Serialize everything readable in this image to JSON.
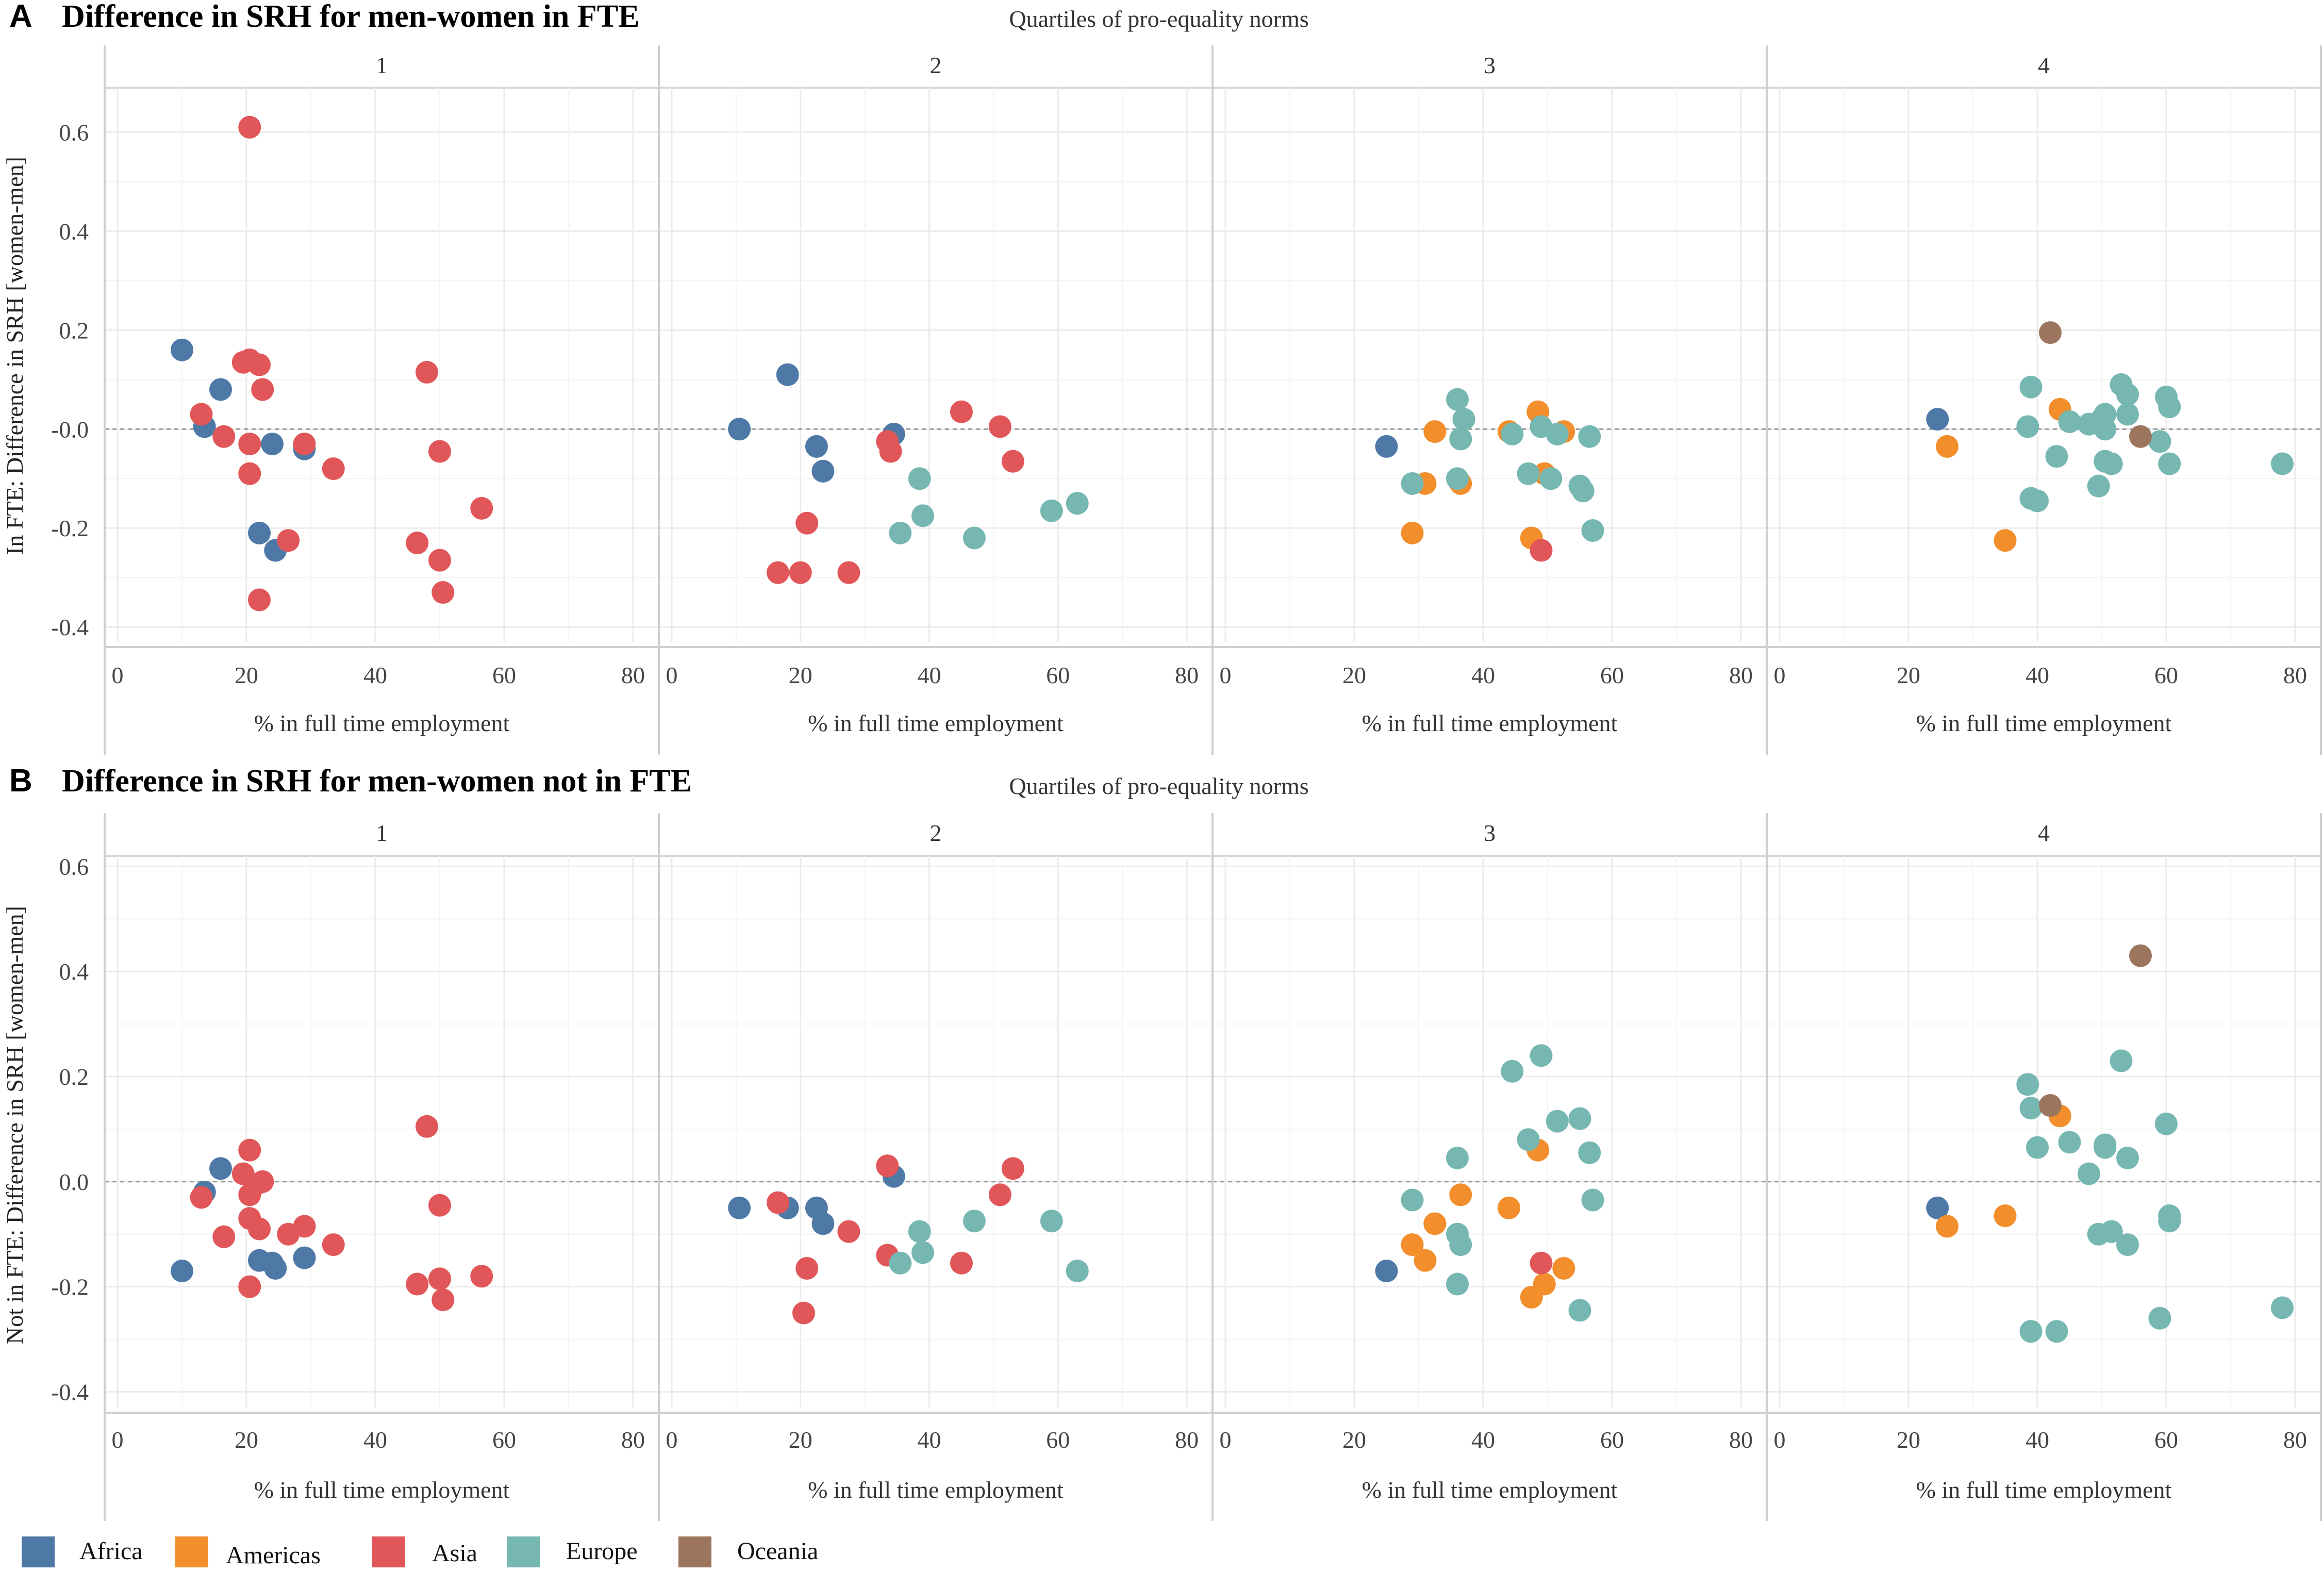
{
  "colors": {
    "Africa": "#4E79A7",
    "Americas": "#F28E2B",
    "Asia": "#E15759",
    "Europe": "#76B7B2",
    "Oceania": "#9C755F"
  },
  "legend": {
    "items": [
      {
        "label": "Africa",
        "key": "Africa"
      },
      {
        "label": "Americas",
        "key": "Americas"
      },
      {
        "label": "Asia",
        "key": "Asia"
      },
      {
        "label": "Europe",
        "key": "Europe"
      },
      {
        "label": "Oceania",
        "key": "Oceania"
      }
    ]
  },
  "chart_data": [
    {
      "type": "scatter",
      "panel_letter": "A",
      "title": "Difference in SRH for men-women in FTE",
      "facet_title": "Quartiles of pro-equality norms",
      "facets": [
        "1",
        "2",
        "3",
        "4"
      ],
      "xlabel": "% in full time employment",
      "ylabel": "In FTE: Difference in SRH [women-men]",
      "xlim": [
        -2,
        84
      ],
      "ylim": [
        -0.43,
        0.69
      ],
      "xticks": [
        0,
        20,
        40,
        60,
        80
      ],
      "xtick_labels": [
        "0",
        "20",
        "40",
        "60",
        "80"
      ],
      "yticks": [
        0.6,
        0.4,
        0.2,
        0.0,
        -0.2,
        -0.4
      ],
      "ytick_labels": [
        "0.6",
        "0.4",
        "0.2",
        "-0.0",
        "-0.2",
        "-0.4"
      ],
      "reference_line_y": 0,
      "points": [
        [
          1,
          10,
          0.16,
          "Africa"
        ],
        [
          1,
          13.5,
          0.005,
          "Africa"
        ],
        [
          1,
          16,
          0.08,
          "Africa"
        ],
        [
          1,
          22,
          -0.21,
          "Africa"
        ],
        [
          1,
          24,
          -0.03,
          "Africa"
        ],
        [
          1,
          24.5,
          -0.245,
          "Africa"
        ],
        [
          1,
          29,
          -0.04,
          "Africa"
        ],
        [
          1,
          13,
          0.03,
          "Asia"
        ],
        [
          1,
          16.5,
          -0.015,
          "Asia"
        ],
        [
          1,
          19.5,
          0.135,
          "Asia"
        ],
        [
          1,
          20.5,
          0.61,
          "Asia"
        ],
        [
          1,
          20.5,
          0.14,
          "Asia"
        ],
        [
          1,
          20.5,
          -0.09,
          "Asia"
        ],
        [
          1,
          20.5,
          -0.03,
          "Asia"
        ],
        [
          1,
          22,
          0.13,
          "Asia"
        ],
        [
          1,
          22,
          -0.345,
          "Asia"
        ],
        [
          1,
          22.5,
          0.08,
          "Asia"
        ],
        [
          1,
          26.5,
          -0.225,
          "Asia"
        ],
        [
          1,
          29,
          -0.03,
          "Asia"
        ],
        [
          1,
          33.5,
          -0.08,
          "Asia"
        ],
        [
          1,
          46.5,
          -0.23,
          "Asia"
        ],
        [
          1,
          48,
          0.115,
          "Asia"
        ],
        [
          1,
          50,
          -0.045,
          "Asia"
        ],
        [
          1,
          50,
          -0.265,
          "Asia"
        ],
        [
          1,
          50.5,
          -0.33,
          "Asia"
        ],
        [
          1,
          56.5,
          -0.16,
          "Asia"
        ],
        [
          2,
          10.5,
          0.0,
          "Africa"
        ],
        [
          2,
          18,
          0.11,
          "Africa"
        ],
        [
          2,
          22.5,
          -0.035,
          "Africa"
        ],
        [
          2,
          23.5,
          -0.085,
          "Africa"
        ],
        [
          2,
          34.5,
          -0.01,
          "Africa"
        ],
        [
          2,
          16.5,
          -0.29,
          "Asia"
        ],
        [
          2,
          20,
          -0.29,
          "Asia"
        ],
        [
          2,
          21,
          -0.19,
          "Asia"
        ],
        [
          2,
          27.5,
          -0.29,
          "Asia"
        ],
        [
          2,
          33.5,
          -0.025,
          "Asia"
        ],
        [
          2,
          34,
          -0.045,
          "Asia"
        ],
        [
          2,
          45,
          0.035,
          "Asia"
        ],
        [
          2,
          51,
          0.005,
          "Asia"
        ],
        [
          2,
          53,
          -0.065,
          "Asia"
        ],
        [
          2,
          35.5,
          -0.21,
          "Europe"
        ],
        [
          2,
          38.5,
          -0.1,
          "Europe"
        ],
        [
          2,
          39,
          -0.175,
          "Europe"
        ],
        [
          2,
          47,
          -0.22,
          "Europe"
        ],
        [
          2,
          59,
          -0.165,
          "Europe"
        ],
        [
          2,
          63,
          -0.15,
          "Europe"
        ],
        [
          3,
          25,
          -0.035,
          "Africa"
        ],
        [
          3,
          29,
          -0.21,
          "Americas"
        ],
        [
          3,
          31,
          -0.11,
          "Americas"
        ],
        [
          3,
          32.5,
          -0.005,
          "Americas"
        ],
        [
          3,
          36.5,
          -0.11,
          "Americas"
        ],
        [
          3,
          44,
          -0.005,
          "Americas"
        ],
        [
          3,
          47.5,
          -0.22,
          "Americas"
        ],
        [
          3,
          48.5,
          0.035,
          "Americas"
        ],
        [
          3,
          49.5,
          -0.09,
          "Americas"
        ],
        [
          3,
          52.5,
          -0.005,
          "Americas"
        ],
        [
          3,
          49,
          -0.245,
          "Asia"
        ],
        [
          3,
          29,
          -0.11,
          "Europe"
        ],
        [
          3,
          36,
          0.06,
          "Europe"
        ],
        [
          3,
          36,
          -0.1,
          "Europe"
        ],
        [
          3,
          36.5,
          -0.02,
          "Europe"
        ],
        [
          3,
          37,
          0.02,
          "Europe"
        ],
        [
          3,
          44.5,
          -0.01,
          "Europe"
        ],
        [
          3,
          47,
          -0.09,
          "Europe"
        ],
        [
          3,
          49,
          0.005,
          "Europe"
        ],
        [
          3,
          50.5,
          -0.1,
          "Europe"
        ],
        [
          3,
          51.5,
          -0.01,
          "Europe"
        ],
        [
          3,
          55,
          -0.115,
          "Europe"
        ],
        [
          3,
          55.5,
          -0.125,
          "Europe"
        ],
        [
          3,
          56.5,
          -0.015,
          "Europe"
        ],
        [
          3,
          57,
          -0.205,
          "Europe"
        ],
        [
          4,
          24.5,
          0.02,
          "Africa"
        ],
        [
          4,
          26,
          -0.035,
          "Americas"
        ],
        [
          4,
          35,
          -0.225,
          "Americas"
        ],
        [
          4,
          43.5,
          0.04,
          "Americas"
        ],
        [
          4,
          38.5,
          0.005,
          "Europe"
        ],
        [
          4,
          39,
          0.085,
          "Europe"
        ],
        [
          4,
          39,
          -0.14,
          "Europe"
        ],
        [
          4,
          40,
          -0.145,
          "Europe"
        ],
        [
          4,
          43,
          -0.055,
          "Europe"
        ],
        [
          4,
          45,
          0.015,
          "Europe"
        ],
        [
          4,
          48,
          0.01,
          "Europe"
        ],
        [
          4,
          49.5,
          -0.115,
          "Europe"
        ],
        [
          4,
          50,
          0.02,
          "Europe"
        ],
        [
          4,
          50.5,
          0.03,
          "Europe"
        ],
        [
          4,
          50.5,
          -0.065,
          "Europe"
        ],
        [
          4,
          50.5,
          0.0,
          "Europe"
        ],
        [
          4,
          51.5,
          -0.07,
          "Europe"
        ],
        [
          4,
          53,
          0.09,
          "Europe"
        ],
        [
          4,
          54,
          0.03,
          "Europe"
        ],
        [
          4,
          54,
          0.07,
          "Europe"
        ],
        [
          4,
          59,
          -0.025,
          "Europe"
        ],
        [
          4,
          60,
          0.065,
          "Europe"
        ],
        [
          4,
          60.5,
          0.045,
          "Europe"
        ],
        [
          4,
          60.5,
          -0.07,
          "Europe"
        ],
        [
          4,
          78,
          -0.07,
          "Europe"
        ],
        [
          4,
          42,
          0.195,
          "Oceania"
        ],
        [
          4,
          56,
          -0.015,
          "Oceania"
        ]
      ]
    },
    {
      "type": "scatter",
      "panel_letter": "B",
      "title": "Difference in SRH for men-women not in FTE",
      "facet_title": "Quartiles of pro-equality norms",
      "facets": [
        "1",
        "2",
        "3",
        "4"
      ],
      "xlabel": "% in full time employment",
      "ylabel": "Not in FTE: Difference in SRH [women-men]",
      "xlim": [
        -2,
        84
      ],
      "ylim": [
        -0.43,
        0.62
      ],
      "xticks": [
        0,
        20,
        40,
        60,
        80
      ],
      "xtick_labels": [
        "0",
        "20",
        "40",
        "60",
        "80"
      ],
      "yticks": [
        0.6,
        0.4,
        0.2,
        0.0,
        -0.2,
        -0.4
      ],
      "ytick_labels": [
        "0.6",
        "0.4",
        "0.2",
        "0.0",
        "-0.2",
        "-0.4"
      ],
      "reference_line_y": 0,
      "points": [
        [
          1,
          10,
          -0.17,
          "Africa"
        ],
        [
          1,
          13.5,
          -0.02,
          "Africa"
        ],
        [
          1,
          16,
          0.025,
          "Africa"
        ],
        [
          1,
          22,
          -0.15,
          "Africa"
        ],
        [
          1,
          24,
          -0.155,
          "Africa"
        ],
        [
          1,
          24.5,
          -0.165,
          "Africa"
        ],
        [
          1,
          29,
          -0.145,
          "Africa"
        ],
        [
          1,
          13,
          -0.03,
          "Asia"
        ],
        [
          1,
          16.5,
          -0.105,
          "Asia"
        ],
        [
          1,
          19.5,
          0.015,
          "Asia"
        ],
        [
          1,
          20.5,
          0.06,
          "Asia"
        ],
        [
          1,
          20.5,
          -0.025,
          "Asia"
        ],
        [
          1,
          20.5,
          -0.07,
          "Asia"
        ],
        [
          1,
          20.5,
          -0.2,
          "Asia"
        ],
        [
          1,
          21.5,
          -0.005,
          "Asia"
        ],
        [
          1,
          22,
          -0.09,
          "Asia"
        ],
        [
          1,
          22.5,
          0.0,
          "Asia"
        ],
        [
          1,
          26.5,
          -0.1,
          "Asia"
        ],
        [
          1,
          29,
          -0.085,
          "Asia"
        ],
        [
          1,
          33.5,
          -0.12,
          "Asia"
        ],
        [
          1,
          46.5,
          -0.195,
          "Asia"
        ],
        [
          1,
          48,
          0.105,
          "Asia"
        ],
        [
          1,
          50,
          -0.045,
          "Asia"
        ],
        [
          1,
          50,
          -0.185,
          "Asia"
        ],
        [
          1,
          50.5,
          -0.225,
          "Asia"
        ],
        [
          1,
          56.5,
          -0.18,
          "Asia"
        ],
        [
          2,
          10.5,
          -0.05,
          "Africa"
        ],
        [
          2,
          18,
          -0.05,
          "Africa"
        ],
        [
          2,
          22.5,
          -0.05,
          "Africa"
        ],
        [
          2,
          23.5,
          -0.08,
          "Africa"
        ],
        [
          2,
          34.5,
          0.01,
          "Africa"
        ],
        [
          2,
          16.5,
          -0.04,
          "Asia"
        ],
        [
          2,
          21,
          -0.165,
          "Asia"
        ],
        [
          2,
          20.5,
          -0.25,
          "Asia"
        ],
        [
          2,
          27.5,
          -0.095,
          "Asia"
        ],
        [
          2,
          33.5,
          0.03,
          "Asia"
        ],
        [
          2,
          33.5,
          -0.14,
          "Asia"
        ],
        [
          2,
          45,
          -0.155,
          "Asia"
        ],
        [
          2,
          51,
          -0.025,
          "Asia"
        ],
        [
          2,
          53,
          0.025,
          "Asia"
        ],
        [
          2,
          35.5,
          -0.155,
          "Europe"
        ],
        [
          2,
          38.5,
          -0.095,
          "Europe"
        ],
        [
          2,
          39,
          -0.135,
          "Europe"
        ],
        [
          2,
          47,
          -0.075,
          "Europe"
        ],
        [
          2,
          59,
          -0.075,
          "Europe"
        ],
        [
          2,
          63,
          -0.17,
          "Europe"
        ],
        [
          3,
          25,
          -0.17,
          "Africa"
        ],
        [
          3,
          29,
          -0.12,
          "Americas"
        ],
        [
          3,
          31,
          -0.15,
          "Americas"
        ],
        [
          3,
          32.5,
          -0.08,
          "Americas"
        ],
        [
          3,
          36.5,
          -0.025,
          "Americas"
        ],
        [
          3,
          44,
          -0.05,
          "Americas"
        ],
        [
          3,
          47.5,
          -0.22,
          "Americas"
        ],
        [
          3,
          48.5,
          0.06,
          "Americas"
        ],
        [
          3,
          49.5,
          -0.195,
          "Americas"
        ],
        [
          3,
          52.5,
          -0.165,
          "Americas"
        ],
        [
          3,
          49,
          -0.155,
          "Asia"
        ],
        [
          3,
          29,
          -0.035,
          "Europe"
        ],
        [
          3,
          36,
          0.045,
          "Europe"
        ],
        [
          3,
          36,
          -0.1,
          "Europe"
        ],
        [
          3,
          36.5,
          -0.12,
          "Europe"
        ],
        [
          3,
          36,
          -0.195,
          "Europe"
        ],
        [
          3,
          44.5,
          0.21,
          "Europe"
        ],
        [
          3,
          47,
          0.08,
          "Europe"
        ],
        [
          3,
          49,
          0.24,
          "Europe"
        ],
        [
          3,
          51.5,
          0.115,
          "Europe"
        ],
        [
          3,
          55,
          0.12,
          "Europe"
        ],
        [
          3,
          55,
          -0.245,
          "Europe"
        ],
        [
          3,
          56.5,
          0.055,
          "Europe"
        ],
        [
          3,
          57,
          -0.035,
          "Europe"
        ],
        [
          4,
          24.5,
          -0.05,
          "Africa"
        ],
        [
          4,
          26,
          -0.085,
          "Americas"
        ],
        [
          4,
          35,
          -0.065,
          "Americas"
        ],
        [
          4,
          43.5,
          0.125,
          "Americas"
        ],
        [
          4,
          38.5,
          0.185,
          "Europe"
        ],
        [
          4,
          39,
          0.14,
          "Europe"
        ],
        [
          4,
          39,
          -0.285,
          "Europe"
        ],
        [
          4,
          40,
          0.065,
          "Europe"
        ],
        [
          4,
          43,
          -0.285,
          "Europe"
        ],
        [
          4,
          45,
          0.075,
          "Europe"
        ],
        [
          4,
          48,
          0.015,
          "Europe"
        ],
        [
          4,
          49.5,
          -0.1,
          "Europe"
        ],
        [
          4,
          50.5,
          0.065,
          "Europe"
        ],
        [
          4,
          50.5,
          0.07,
          "Europe"
        ],
        [
          4,
          51.5,
          -0.095,
          "Europe"
        ],
        [
          4,
          53,
          0.23,
          "Europe"
        ],
        [
          4,
          54,
          0.045,
          "Europe"
        ],
        [
          4,
          54,
          -0.12,
          "Europe"
        ],
        [
          4,
          59,
          -0.26,
          "Europe"
        ],
        [
          4,
          60,
          0.11,
          "Europe"
        ],
        [
          4,
          60.5,
          -0.065,
          "Europe"
        ],
        [
          4,
          60.5,
          -0.075,
          "Europe"
        ],
        [
          4,
          78,
          -0.24,
          "Europe"
        ],
        [
          4,
          42,
          0.145,
          "Oceania"
        ],
        [
          4,
          56,
          0.43,
          "Oceania"
        ]
      ]
    }
  ]
}
